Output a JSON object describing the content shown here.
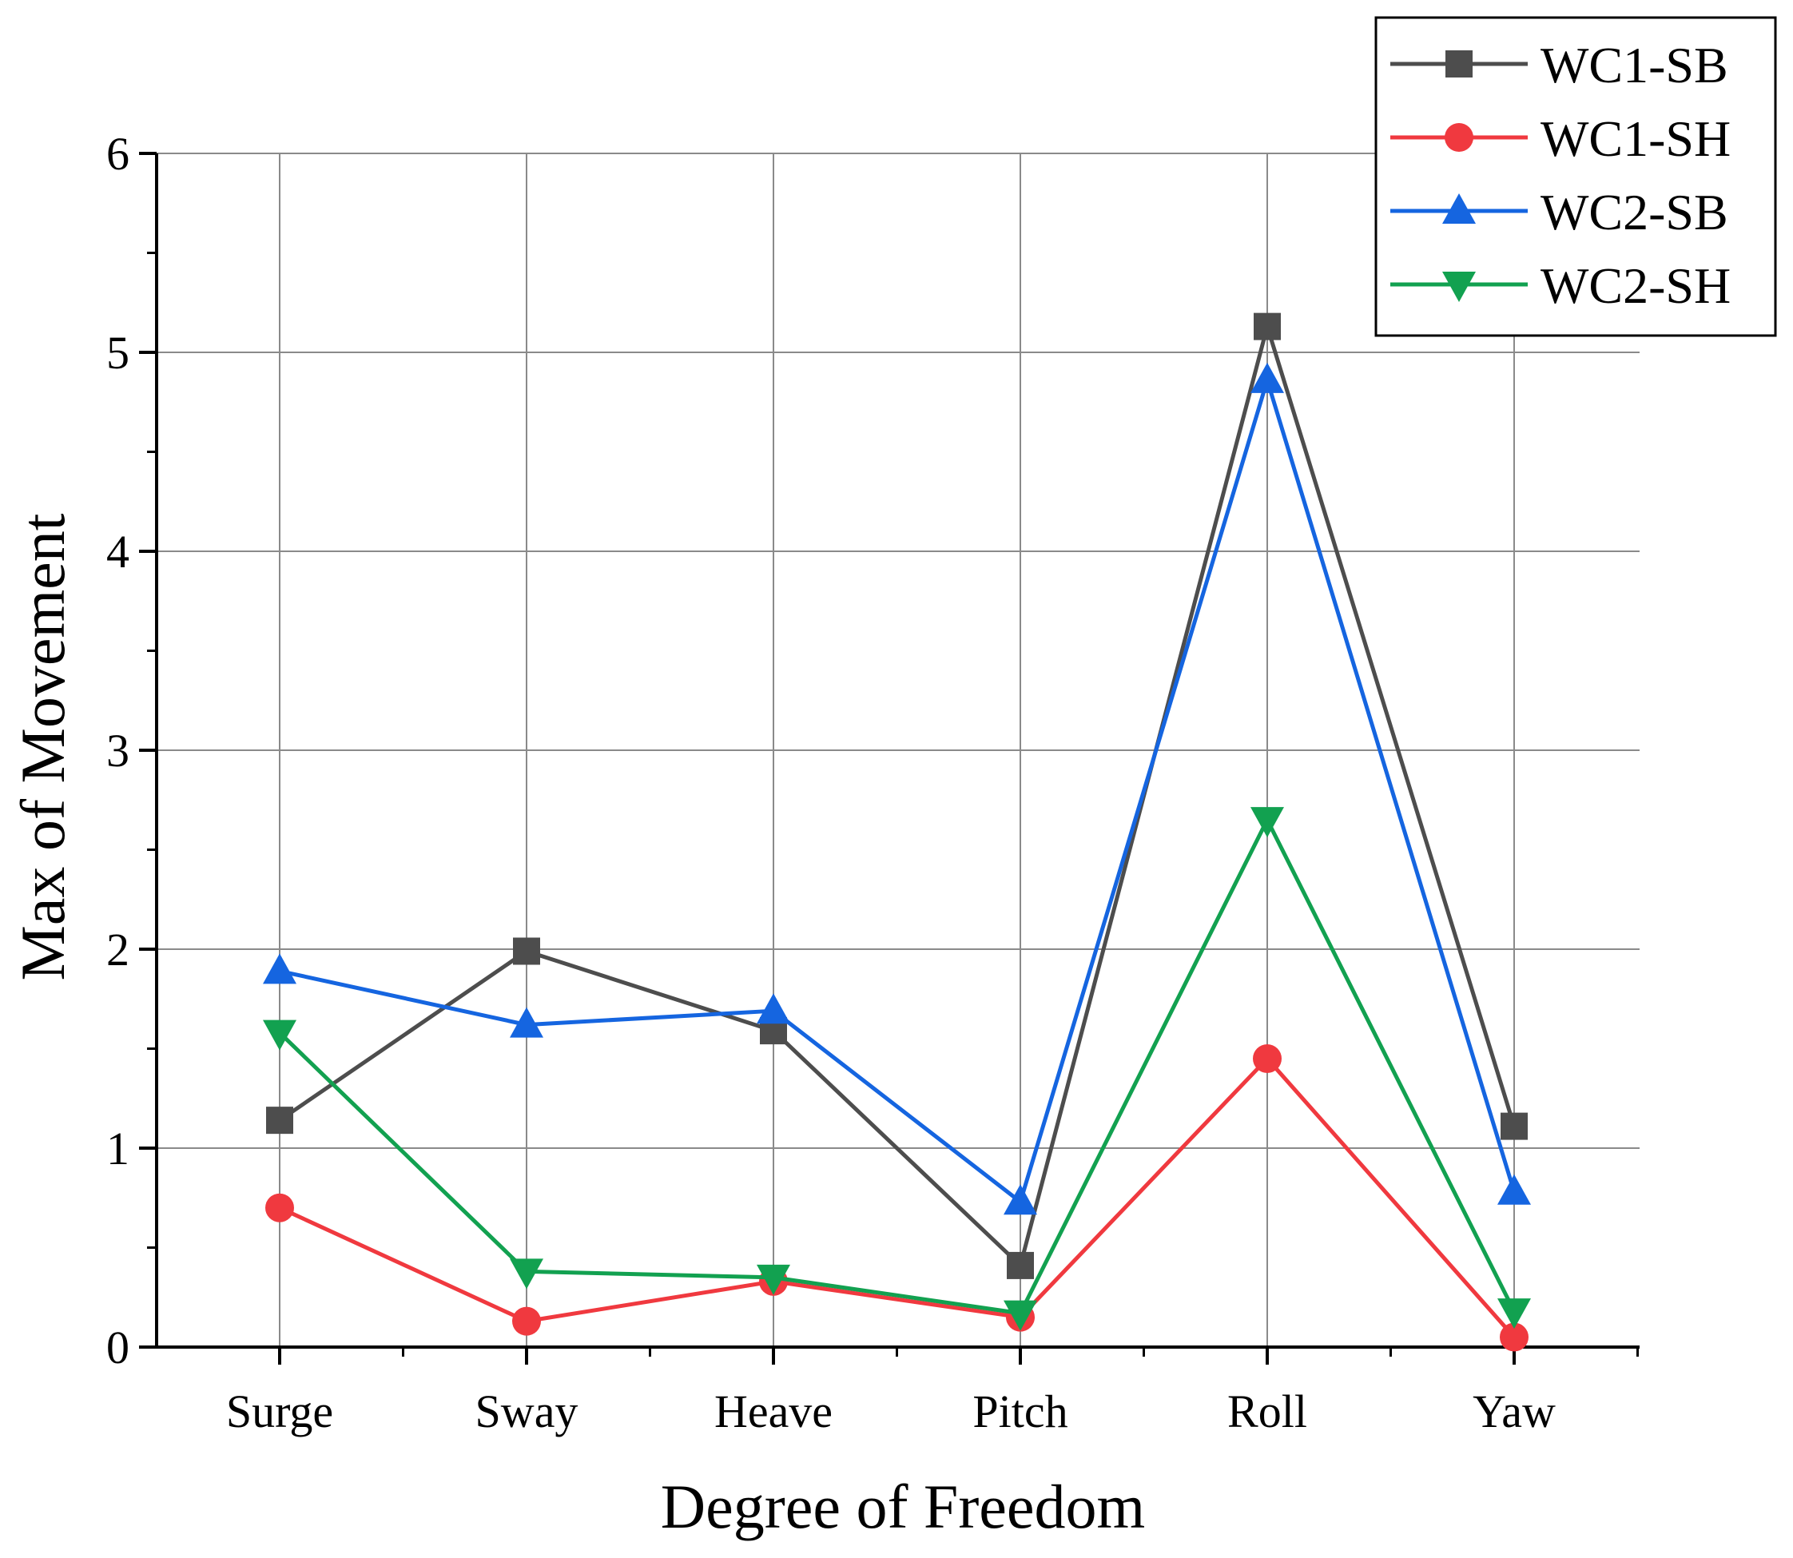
{
  "chart_data": {
    "type": "line",
    "title": "",
    "xlabel": "Degree of Freedom",
    "ylabel": "Max of Movement",
    "categories": [
      "Surge",
      "Sway",
      "Heave",
      "Pitch",
      "Roll",
      "Yaw"
    ],
    "ylim": [
      0,
      6
    ],
    "yticks": [
      0,
      1,
      2,
      3,
      4,
      5,
      6
    ],
    "grid": true,
    "legend": "top-right",
    "series": [
      {
        "name": "WC1-SB",
        "marker": "square",
        "color": "#4d4d4d",
        "values": [
          1.14,
          1.99,
          1.59,
          0.41,
          5.13,
          1.11
        ]
      },
      {
        "name": "WC1-SH",
        "marker": "circle",
        "color": "#f0393f",
        "values": [
          0.7,
          0.13,
          0.33,
          0.15,
          1.45,
          0.05
        ]
      },
      {
        "name": "WC2-SB",
        "marker": "triangle-up",
        "color": "#1565e0",
        "values": [
          1.89,
          1.62,
          1.69,
          0.73,
          4.86,
          0.78
        ]
      },
      {
        "name": "WC2-SH",
        "marker": "triangle-down",
        "color": "#12a150",
        "values": [
          1.58,
          0.38,
          0.35,
          0.17,
          2.65,
          0.18
        ]
      }
    ]
  }
}
